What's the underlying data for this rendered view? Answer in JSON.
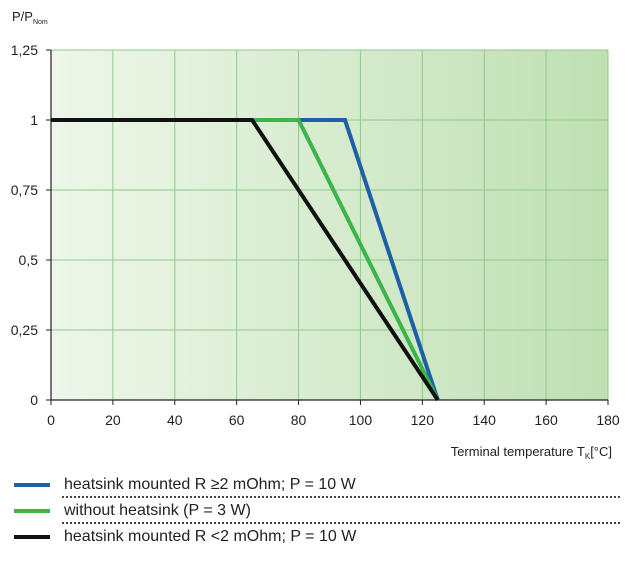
{
  "chart_data": {
    "type": "line",
    "ylabel": {
      "main": "P/P",
      "sub": "Nom"
    },
    "xlabel": {
      "main": "Terminal temperature T",
      "sub": "K",
      "unit": "[°C]"
    },
    "xlim": [
      0,
      180
    ],
    "ylim": [
      0,
      1.25
    ],
    "x_ticks": [
      "0",
      "20",
      "40",
      "60",
      "80",
      "100",
      "120",
      "140",
      "160",
      "180"
    ],
    "y_ticks": [
      "0",
      "0,25",
      "0,5",
      "0,75",
      "1",
      "1,25"
    ],
    "grid": true,
    "series": [
      {
        "name": "heatsink mounted  R ≥2 mOhm; P = 10 W",
        "color": "#1f5fa6",
        "x": [
          0,
          95,
          125
        ],
        "y": [
          1,
          1,
          0
        ]
      },
      {
        "name": "without heatsink (P = 3 W)",
        "color": "#3bb54a",
        "x": [
          0,
          80,
          125
        ],
        "y": [
          1,
          1,
          0
        ]
      },
      {
        "name": "heatsink mounted  R <2 mOhm; P = 10 W",
        "color": "#111111",
        "x": [
          0,
          65,
          125
        ],
        "y": [
          1,
          1,
          0
        ]
      }
    ]
  },
  "colors": {
    "plot_bg_start": "#eef7ea",
    "plot_bg_end": "#bfe0b3",
    "grid": "#8fc98a"
  }
}
